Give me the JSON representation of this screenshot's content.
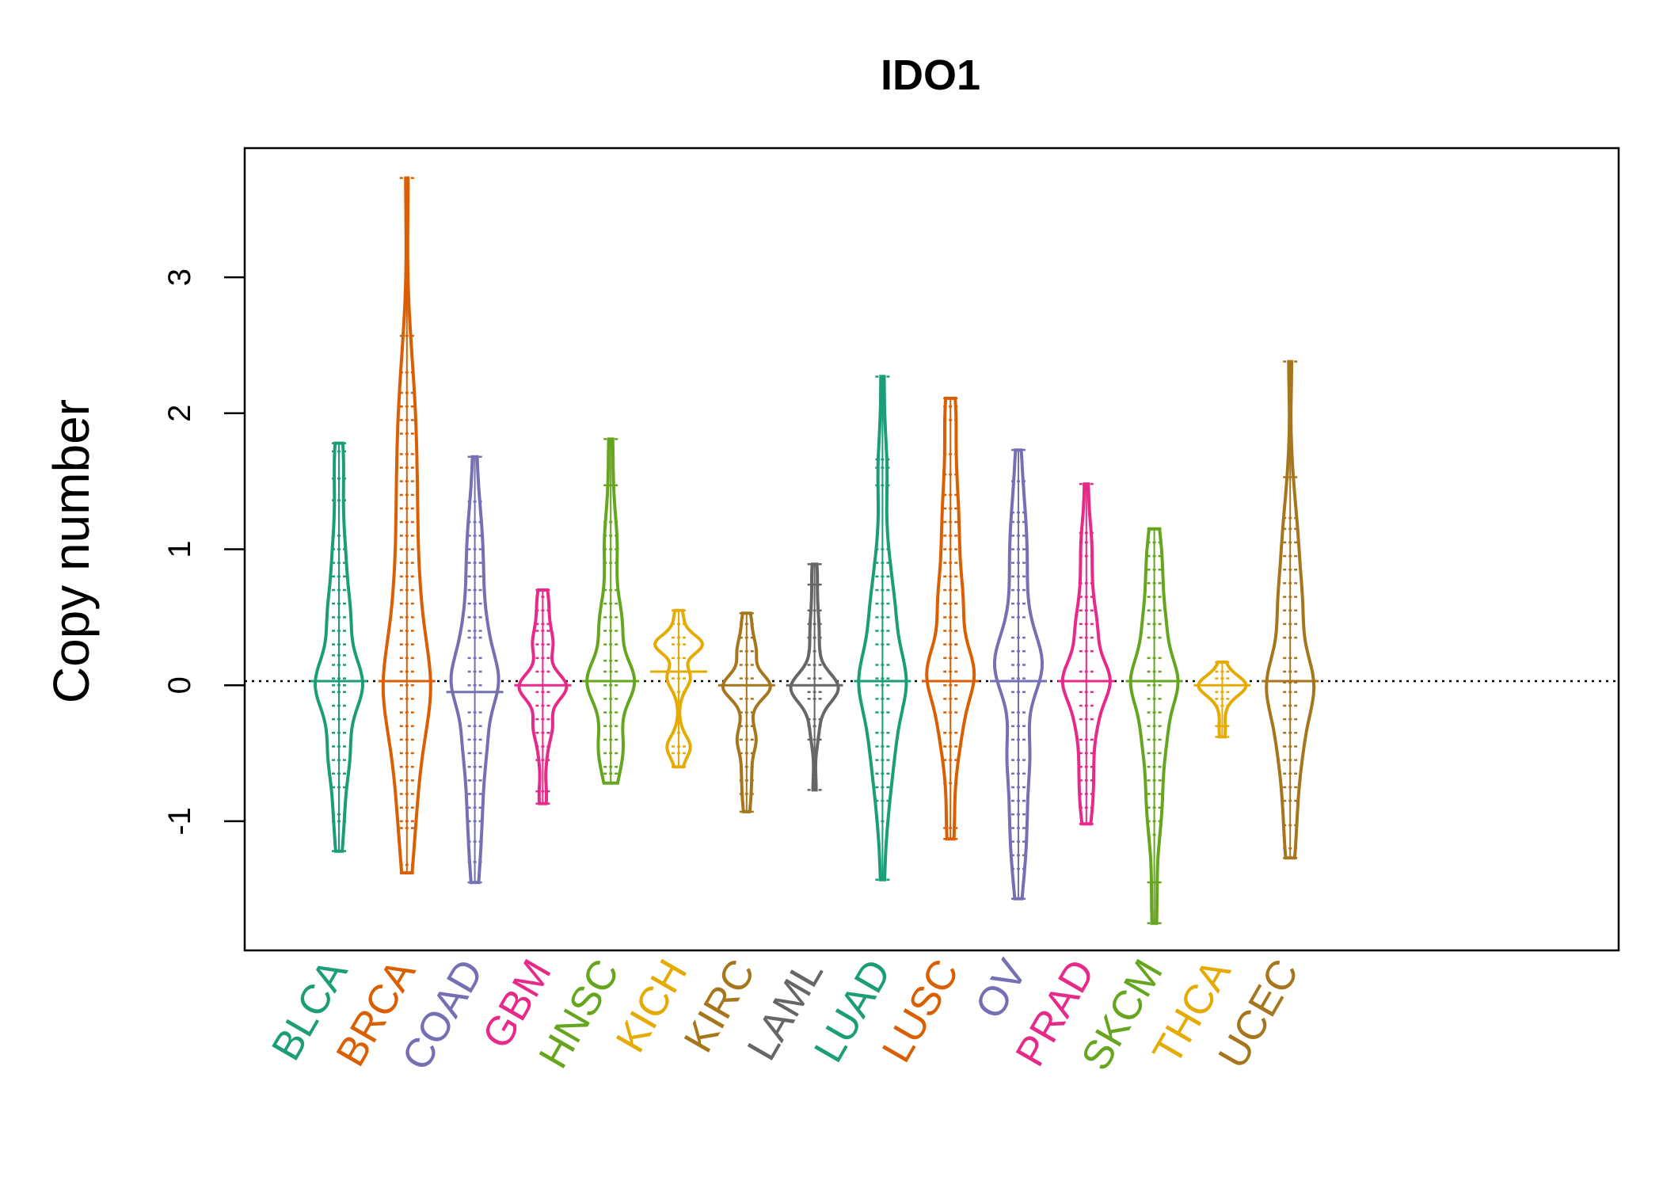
{
  "chart_data": {
    "type": "beanplot",
    "title": "IDO1",
    "xlabel": "",
    "ylabel": "Copy number",
    "ylim": [
      -1.95,
      3.95
    ],
    "yticks": [
      -1,
      0,
      1,
      2,
      3
    ],
    "ytick_labels": [
      "-1",
      "0",
      "1",
      "2",
      "3"
    ],
    "reference_line": 0.03,
    "grid": false,
    "legend": "none",
    "categories": [
      "BLCA",
      "BRCA",
      "COAD",
      "GBM",
      "HNSC",
      "KICH",
      "KIRC",
      "LAML",
      "LUAD",
      "LUSC",
      "OV",
      "PRAD",
      "SKCM",
      "THCA",
      "UCEC"
    ],
    "colors": [
      "#1B9E77",
      "#D95F02",
      "#7570B3",
      "#E7298A",
      "#66A61E",
      "#E6AB02",
      "#A6761D",
      "#666666",
      "#1B9E77",
      "#D95F02",
      "#7570B3",
      "#E7298A",
      "#66A61E",
      "#E6AB02",
      "#A6761D"
    ],
    "series": [
      {
        "name": "BLCA",
        "min": -1.22,
        "max": 1.78,
        "mean": 0.03,
        "density_peaks": [
          0.02,
          -0.05,
          0.5,
          -0.5
        ],
        "points": [
          1.78,
          1.72,
          1.52,
          1.36,
          1.1,
          1.0,
          0.9,
          0.8,
          0.7,
          0.6,
          0.5,
          0.4,
          0.3,
          0.22,
          0.15,
          0.05,
          0.0,
          -0.05,
          -0.15,
          -0.25,
          -0.35,
          -0.45,
          -0.55,
          -0.65,
          -0.75,
          -0.95,
          -1.0,
          -1.22
        ]
      },
      {
        "name": "BRCA",
        "min": -1.38,
        "max": 3.73,
        "mean": 0.03,
        "density_peaks": [
          0.02,
          -0.05,
          0.5,
          -0.4
        ],
        "points": [
          3.73,
          2.57,
          2.3,
          2.15,
          2.05,
          1.95,
          1.85,
          1.7,
          1.6,
          1.5,
          1.4,
          1.3,
          1.2,
          1.1,
          1.0,
          0.9,
          0.8,
          0.7,
          0.6,
          0.5,
          0.4,
          0.3,
          0.2,
          0.1,
          0.0,
          -0.1,
          -0.2,
          -0.3,
          -0.4,
          -0.5,
          -0.6,
          -0.7,
          -0.8,
          -0.9,
          -1.0,
          -1.05,
          -1.32,
          -1.38
        ]
      },
      {
        "name": "COAD",
        "min": -1.45,
        "max": 1.68,
        "mean": -0.05,
        "density_peaks": [
          0.05,
          -0.05,
          0.35,
          -0.4
        ],
        "points": [
          1.68,
          1.35,
          1.2,
          1.1,
          1.0,
          0.9,
          0.8,
          0.7,
          0.6,
          0.5,
          0.4,
          0.35,
          0.2,
          0.1,
          0.0,
          -0.05,
          -0.2,
          -0.3,
          -0.4,
          -0.5,
          -0.6,
          -0.7,
          -0.8,
          -0.9,
          -1.0,
          -1.15,
          -1.3,
          -1.45
        ]
      },
      {
        "name": "GBM",
        "min": -0.87,
        "max": 0.7,
        "mean": 0.0,
        "density_peaks": [
          0.0,
          -0.05,
          0.3,
          -0.3
        ],
        "points": [
          0.7,
          0.65,
          0.55,
          0.45,
          0.4,
          0.3,
          0.2,
          0.1,
          0.0,
          -0.05,
          -0.15,
          -0.25,
          -0.35,
          -0.45,
          -0.55,
          -0.78,
          -0.87
        ]
      },
      {
        "name": "HNSC",
        "min": -0.72,
        "max": 1.81,
        "mean": 0.03,
        "density_peaks": [
          0.05,
          -0.05,
          0.45,
          -0.45
        ],
        "points": [
          1.81,
          1.47,
          1.2,
          1.1,
          1.0,
          0.9,
          0.7,
          0.6,
          0.5,
          0.4,
          0.3,
          0.18,
          0.1,
          0.0,
          -0.1,
          -0.2,
          -0.3,
          -0.4,
          -0.5,
          -0.6,
          -0.65,
          -0.72
        ]
      },
      {
        "name": "KICH",
        "min": -0.6,
        "max": 0.55,
        "mean": 0.1,
        "density_peaks": [
          0.3,
          0.05,
          -0.45
        ],
        "points": [
          0.55,
          0.45,
          0.35,
          0.3,
          0.2,
          0.1,
          0.05,
          -0.05,
          -0.35,
          -0.45,
          -0.5,
          -0.6
        ]
      },
      {
        "name": "KIRC",
        "min": -0.93,
        "max": 0.53,
        "mean": 0.0,
        "density_peaks": [
          0.0,
          -0.05,
          0.25,
          -0.4
        ],
        "points": [
          0.53,
          0.45,
          0.35,
          0.25,
          0.15,
          0.05,
          0.0,
          -0.1,
          -0.2,
          -0.3,
          -0.4,
          -0.5,
          -0.6,
          -0.7,
          -0.8,
          -0.93
        ]
      },
      {
        "name": "LAML",
        "min": -0.77,
        "max": 0.89,
        "mean": 0.0,
        "density_peaks": [
          0.0,
          -0.03,
          -0.1
        ],
        "points": [
          0.89,
          0.74,
          0.55,
          0.45,
          0.35,
          0.25,
          0.15,
          0.05,
          0.0,
          -0.05,
          -0.1,
          -0.25,
          -0.3,
          -0.4,
          -0.77
        ]
      },
      {
        "name": "LUAD",
        "min": -1.43,
        "max": 2.27,
        "mean": 0.03,
        "density_peaks": [
          0.05,
          -0.05,
          0.5,
          -0.4
        ],
        "points": [
          2.27,
          1.66,
          1.6,
          1.47,
          1.0,
          0.9,
          0.8,
          0.7,
          0.6,
          0.5,
          0.4,
          0.3,
          0.15,
          0.05,
          0.0,
          -0.1,
          -0.2,
          -0.35,
          -0.45,
          -0.55,
          -0.65,
          -0.75,
          -0.85,
          -1.0,
          -1.43
        ]
      },
      {
        "name": "LUSC",
        "min": -1.13,
        "max": 2.11,
        "mean": 0.03,
        "density_peaks": [
          0.1,
          0.03,
          0.6,
          -0.3
        ],
        "points": [
          2.11,
          2.05,
          1.95,
          1.7,
          1.55,
          1.4,
          1.3,
          1.2,
          1.1,
          1.0,
          0.9,
          0.8,
          0.7,
          0.6,
          0.5,
          0.4,
          0.3,
          0.2,
          0.1,
          0.0,
          -0.1,
          -0.2,
          -0.35,
          -0.45,
          -0.55,
          -0.72,
          -1.05,
          -1.13
        ]
      },
      {
        "name": "OV",
        "min": -1.57,
        "max": 1.73,
        "mean": 0.03,
        "density_peaks": [
          0.15,
          0.05,
          0.35,
          -0.5
        ],
        "points": [
          1.73,
          1.5,
          1.27,
          1.2,
          1.1,
          1.0,
          0.9,
          0.8,
          0.7,
          0.6,
          0.5,
          0.35,
          0.25,
          0.15,
          0.05,
          -0.05,
          -0.2,
          -0.3,
          -0.4,
          -0.55,
          -0.65,
          -0.75,
          -0.85,
          -0.95,
          -1.05,
          -1.15,
          -1.25,
          -1.35,
          -1.57
        ]
      },
      {
        "name": "PRAD",
        "min": -1.02,
        "max": 1.48,
        "mean": 0.03,
        "density_peaks": [
          0.05,
          0.0,
          -0.25,
          0.4
        ],
        "points": [
          1.48,
          1.12,
          1.05,
          0.95,
          0.75,
          0.65,
          0.55,
          0.45,
          0.35,
          0.25,
          0.1,
          0.03,
          -0.05,
          -0.15,
          -0.25,
          -0.4,
          -0.5,
          -0.6,
          -0.7,
          -0.8,
          -0.9,
          -1.02
        ]
      },
      {
        "name": "SKCM",
        "min": -1.75,
        "max": 1.15,
        "mean": 0.03,
        "density_peaks": [
          0.05,
          -0.05,
          0.4,
          -0.35
        ],
        "points": [
          1.15,
          1.05,
          0.95,
          0.85,
          0.75,
          0.65,
          0.55,
          0.45,
          0.35,
          0.2,
          0.1,
          0.0,
          -0.1,
          -0.2,
          -0.3,
          -0.4,
          -0.5,
          -0.6,
          -0.7,
          -0.8,
          -0.9,
          -1.0,
          -1.1,
          -1.45,
          -1.75
        ]
      },
      {
        "name": "THCA",
        "min": -0.38,
        "max": 0.17,
        "mean": 0.0,
        "density_peaks": [
          0.0,
          0.03,
          -0.05
        ],
        "points": [
          0.17,
          0.1,
          0.05,
          0.0,
          -0.05,
          -0.1,
          -0.15,
          -0.3,
          -0.38
        ]
      },
      {
        "name": "UCEC",
        "min": -1.27,
        "max": 2.38,
        "mean": 0.03,
        "density_peaks": [
          0.02,
          -0.05,
          0.55,
          -0.4
        ],
        "points": [
          2.38,
          1.53,
          1.23,
          1.15,
          1.05,
          0.95,
          0.85,
          0.75,
          0.65,
          0.55,
          0.45,
          0.35,
          0.2,
          0.1,
          0.02,
          -0.05,
          -0.15,
          -0.25,
          -0.35,
          -0.45,
          -0.55,
          -0.65,
          -0.75,
          -0.85,
          -1.03,
          -1.2,
          -1.27
        ]
      }
    ]
  }
}
